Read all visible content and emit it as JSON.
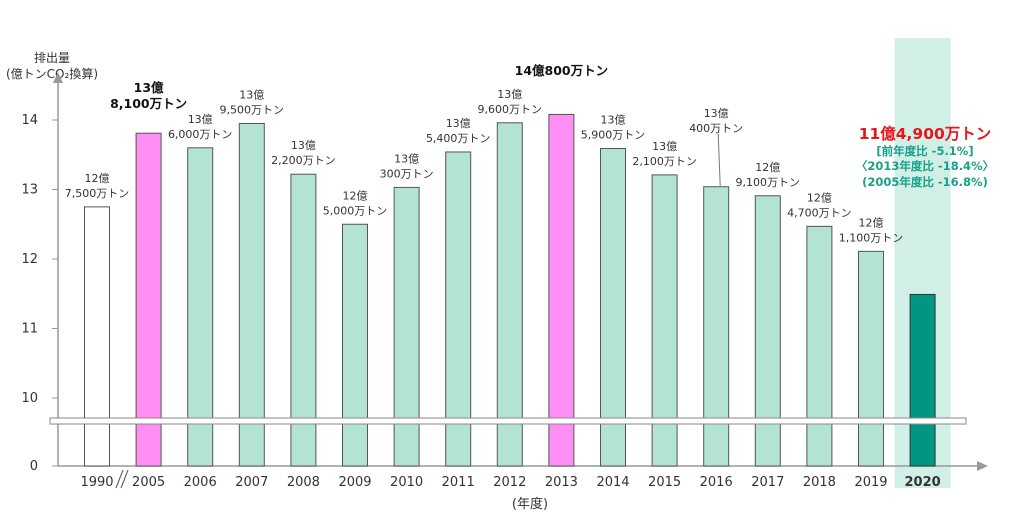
{
  "chart_data": {
    "type": "bar",
    "ylabel_line1": "排出量",
    "ylabel_line2": "(億トンCO₂換算)",
    "xlabel": "(年度)",
    "y_ticks": [
      "0",
      "10",
      "11",
      "12",
      "13",
      "14"
    ],
    "ylim_broken": [
      0,
      10,
      14.5
    ],
    "categories": [
      "1990",
      "2005",
      "2006",
      "2007",
      "2008",
      "2009",
      "2010",
      "2011",
      "2012",
      "2013",
      "2014",
      "2015",
      "2016",
      "2017",
      "2018",
      "2019",
      "2020"
    ],
    "values": [
      12.75,
      13.81,
      13.6,
      13.95,
      13.22,
      12.5,
      13.03,
      13.54,
      13.96,
      14.08,
      13.59,
      13.21,
      13.04,
      12.91,
      12.47,
      12.11,
      11.49
    ],
    "bar_styles": [
      "outline",
      "peak",
      "normal",
      "normal",
      "normal",
      "normal",
      "normal",
      "normal",
      "normal",
      "peak",
      "normal",
      "normal",
      "normal",
      "normal",
      "normal",
      "normal",
      "current"
    ],
    "value_labels": [
      [
        "12億",
        "7,500万トン"
      ],
      [
        "13億",
        "8,100万トン"
      ],
      [
        "13億",
        "6,000万トン"
      ],
      [
        "13億",
        "9,500万トン"
      ],
      [
        "13億",
        "2,200万トン"
      ],
      [
        "12億",
        "5,000万トン"
      ],
      [
        "13億",
        "300万トン"
      ],
      [
        "13億",
        "5,400万トン"
      ],
      [
        "13億",
        "9,600万トン"
      ],
      [
        "14億800万トン"
      ],
      [
        "13億",
        "5,900万トン"
      ],
      [
        "13億",
        "2,100万トン"
      ],
      [
        "13億",
        "400万トン"
      ],
      [
        "12億",
        "9,100万トン"
      ],
      [
        "12億",
        "4,700万トン"
      ],
      [
        "12億",
        "1,100万トン"
      ],
      []
    ],
    "annotation_2020": {
      "value": "11億4,900万トン",
      "lines": [
        "[前年度比 -5.1%]",
        "〈2013年度比 -18.4%〉",
        "(2005年度比 -16.8%)"
      ]
    },
    "colors": {
      "normal": "#b3e3d5",
      "peak": "#ff8ef5",
      "current": "#009782",
      "outline": "#ffffff",
      "highlight_band": "#d2efe7",
      "annotation_red": "#e8151b",
      "annotation_teal": "#18a08a",
      "axis": "#999999"
    }
  }
}
